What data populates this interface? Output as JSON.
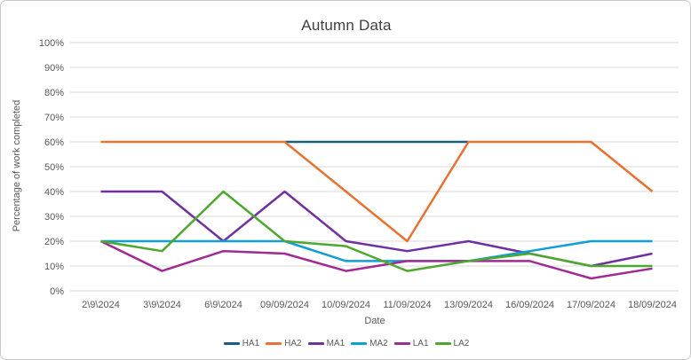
{
  "chart": {
    "title": "Autumn Data",
    "y_axis_title": "Percentage of work completed",
    "x_axis_title": "Date"
  },
  "chart_data": {
    "type": "line",
    "title": "Autumn Data",
    "xlabel": "Date",
    "ylabel": "Percentage of work completed",
    "ylim": [
      0,
      100
    ],
    "y_tick_step": 10,
    "y_tick_suffix": "%",
    "grid": "horizontal",
    "gridline_color": "#d9d9d9",
    "legend_position": "bottom",
    "text_color": "#595959",
    "title_color": "#404040",
    "categories": [
      "2\\9\\2024",
      "3\\9\\2024",
      "6\\9\\2024",
      "09/09/2024",
      "10/09/2024",
      "11/09/2024",
      "13/09/2024",
      "16/09/2024",
      "17/09/2024",
      "18/09/2024"
    ],
    "series": [
      {
        "name": "HA1",
        "color": "#156082",
        "values": [
          null,
          null,
          null,
          60,
          60,
          60,
          60,
          null,
          null,
          null
        ]
      },
      {
        "name": "HA2",
        "color": "#e97132",
        "values": [
          60,
          60,
          60,
          60,
          40,
          20,
          60,
          60,
          60,
          40
        ]
      },
      {
        "name": "MA1",
        "color": "#7030a0",
        "values": [
          40,
          40,
          20,
          40,
          20,
          16,
          20,
          15,
          10,
          15
        ]
      },
      {
        "name": "MA2",
        "color": "#0f9ed5",
        "values": [
          20,
          20,
          20,
          20,
          12,
          12,
          12,
          16,
          20,
          20
        ]
      },
      {
        "name": "LA1",
        "color": "#a02b93",
        "values": [
          20,
          8,
          16,
          15,
          8,
          12,
          12,
          12,
          5,
          9
        ]
      },
      {
        "name": "LA2",
        "color": "#4ea72e",
        "values": [
          20,
          16,
          40,
          20,
          18,
          8,
          12,
          15,
          10,
          10
        ]
      }
    ]
  }
}
